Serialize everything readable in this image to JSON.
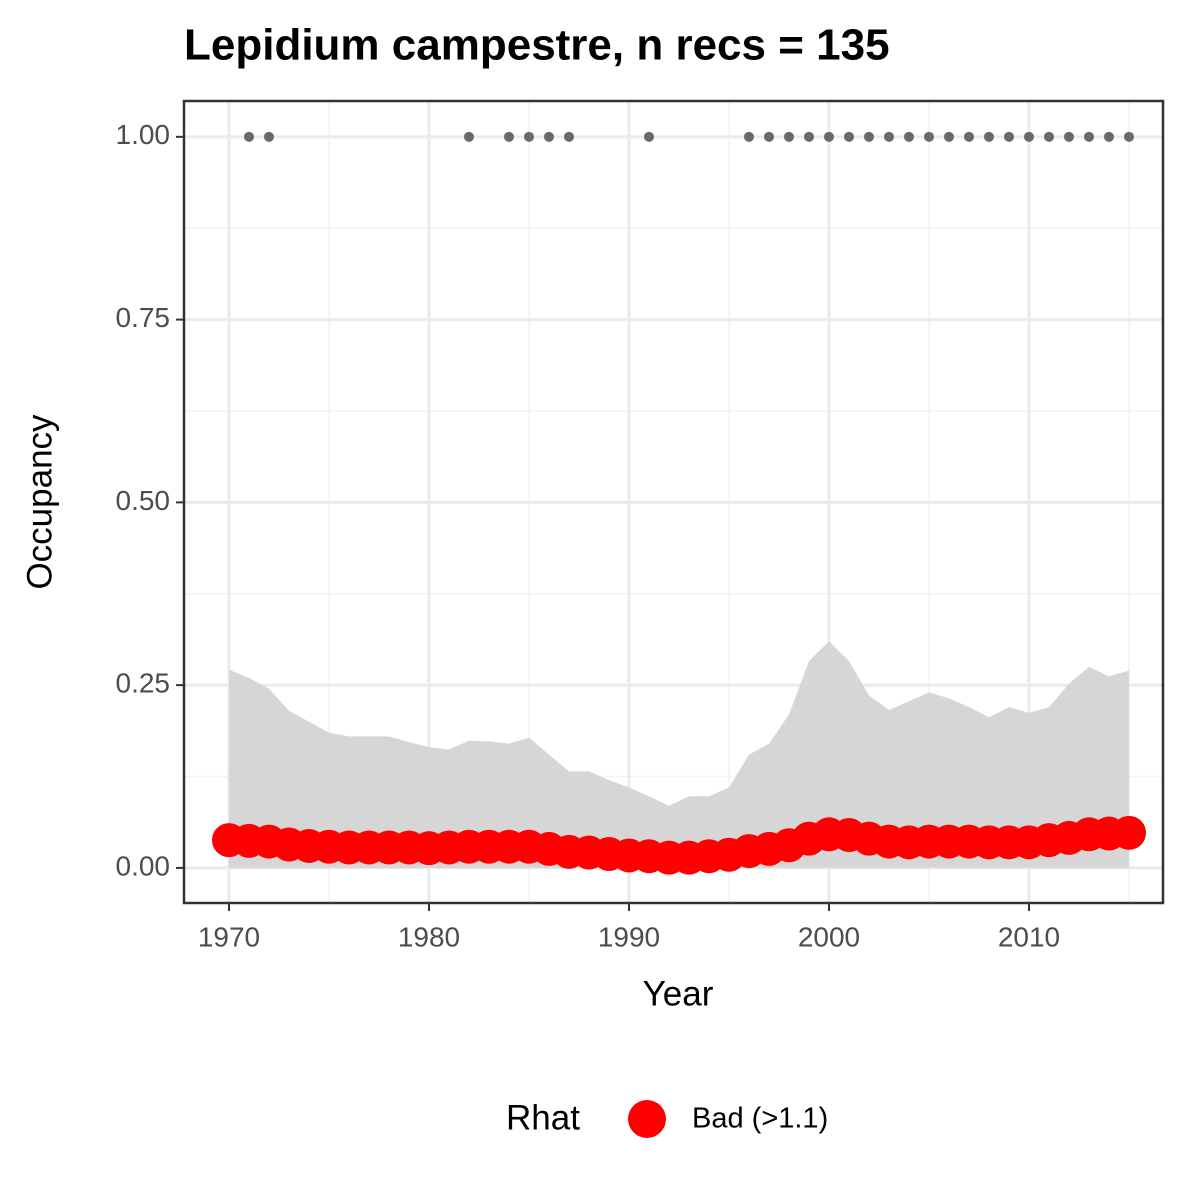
{
  "chart_data": {
    "type": "line",
    "title": "Lepidium campestre, n recs = 135",
    "x_label": "Year",
    "y_label": "Occupancy",
    "x": [
      1970,
      1971,
      1972,
      1973,
      1974,
      1975,
      1976,
      1977,
      1978,
      1979,
      1980,
      1981,
      1982,
      1983,
      1984,
      1985,
      1986,
      1987,
      1988,
      1989,
      1990,
      1991,
      1992,
      1993,
      1994,
      1995,
      1996,
      1997,
      1998,
      1999,
      2000,
      2001,
      2002,
      2003,
      2004,
      2005,
      2006,
      2007,
      2008,
      2009,
      2010,
      2011,
      2012,
      2013,
      2014,
      2015
    ],
    "series": [
      {
        "name": "Bad (>1.1)",
        "color": "#ff0000",
        "values": [
          0.038,
          0.037,
          0.036,
          0.032,
          0.03,
          0.029,
          0.028,
          0.028,
          0.028,
          0.028,
          0.027,
          0.028,
          0.029,
          0.029,
          0.029,
          0.029,
          0.026,
          0.022,
          0.021,
          0.019,
          0.017,
          0.016,
          0.014,
          0.014,
          0.016,
          0.018,
          0.023,
          0.026,
          0.031,
          0.04,
          0.046,
          0.045,
          0.04,
          0.036,
          0.035,
          0.036,
          0.036,
          0.036,
          0.035,
          0.035,
          0.035,
          0.038,
          0.041,
          0.046,
          0.047,
          0.048
        ],
        "upper": [
          0.271,
          0.26,
          0.245,
          0.215,
          0.2,
          0.185,
          0.18,
          0.18,
          0.18,
          0.172,
          0.165,
          0.162,
          0.174,
          0.173,
          0.17,
          0.178,
          0.155,
          0.132,
          0.132,
          0.12,
          0.11,
          0.098,
          0.085,
          0.098,
          0.098,
          0.11,
          0.155,
          0.17,
          0.21,
          0.283,
          0.31,
          0.283,
          0.236,
          0.216,
          0.228,
          0.24,
          0.232,
          0.22,
          0.206,
          0.22,
          0.212,
          0.22,
          0.252,
          0.275,
          0.262,
          0.27
        ],
        "lower": [
          0,
          0,
          0,
          0,
          0,
          0,
          0,
          0,
          0,
          0,
          0,
          0,
          0,
          0,
          0,
          0,
          0,
          0,
          0,
          0,
          0,
          0,
          0,
          0,
          0,
          0,
          0,
          0,
          0,
          0,
          0,
          0,
          0,
          0,
          0,
          0,
          0,
          0,
          0,
          0,
          0,
          0,
          0,
          0,
          0,
          0
        ],
        "band_color": "#d6d6d6"
      }
    ],
    "records": {
      "color": "#696969",
      "x": [
        1971,
        1972,
        1982,
        1984,
        1985,
        1986,
        1987,
        1991,
        1996,
        1997,
        1998,
        1999,
        2000,
        2001,
        2002,
        2003,
        2004,
        2005,
        2006,
        2007,
        2008,
        2009,
        2010,
        2011,
        2012,
        2013,
        2014,
        2015
      ],
      "values": [
        1,
        1,
        1,
        1,
        1,
        1,
        1,
        1,
        1,
        1,
        1,
        1,
        1,
        1,
        1,
        1,
        1,
        1,
        1,
        1,
        1,
        1,
        1,
        1,
        1,
        1,
        1,
        1
      ]
    },
    "legend_title": "Rhat",
    "legend_position": "bottom",
    "xlim": [
      1967.75,
      2016.7
    ],
    "ylim": [
      -0.048,
      1.049
    ],
    "xticks": [
      1970,
      1980,
      1990,
      2000,
      2010
    ],
    "yticks": [
      {
        "value": 0,
        "label": "0.00"
      },
      {
        "value": 0.25,
        "label": "0.25"
      },
      {
        "value": 0.5,
        "label": "0.50"
      },
      {
        "value": 0.75,
        "label": "0.75"
      },
      {
        "value": 1,
        "label": "1.00"
      }
    ],
    "xminor": [
      1975,
      1985,
      1995,
      2005,
      2015
    ],
    "yminor": [
      0.125,
      0.375,
      0.625,
      0.875
    ],
    "grid": true
  }
}
